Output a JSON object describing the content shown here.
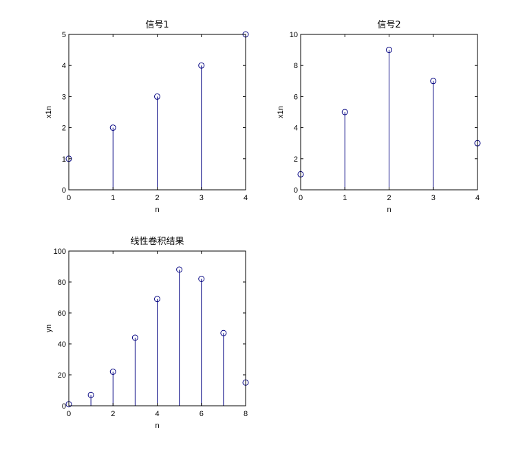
{
  "chart_data": [
    {
      "type": "stem",
      "title": "信号1",
      "xlabel": "n",
      "ylabel": "x1n",
      "xlim": [
        0,
        4
      ],
      "ylim": [
        0,
        5
      ],
      "xticks": [
        0,
        1,
        2,
        3,
        4
      ],
      "yticks": [
        0,
        1,
        2,
        3,
        4,
        5
      ],
      "x": [
        0,
        1,
        2,
        3,
        4
      ],
      "values": [
        1,
        2,
        3,
        4,
        5
      ],
      "color": "#000080"
    },
    {
      "type": "stem",
      "title": "信号2",
      "xlabel": "n",
      "ylabel": "x1n",
      "xlim": [
        0,
        4
      ],
      "ylim": [
        0,
        10
      ],
      "xticks": [
        0,
        1,
        2,
        3,
        4
      ],
      "yticks": [
        0,
        2,
        4,
        6,
        8,
        10
      ],
      "x": [
        0,
        1,
        2,
        3,
        4
      ],
      "values": [
        1,
        5,
        9,
        7,
        3
      ],
      "color": "#000080"
    },
    {
      "type": "stem",
      "title": "线性卷积结果",
      "xlabel": "n",
      "ylabel": "yn",
      "xlim": [
        0,
        8
      ],
      "ylim": [
        0,
        100
      ],
      "xticks": [
        0,
        2,
        4,
        6,
        8
      ],
      "yticks": [
        0,
        20,
        40,
        60,
        80,
        100
      ],
      "x": [
        0,
        1,
        2,
        3,
        4,
        5,
        6,
        7,
        8
      ],
      "values": [
        1,
        7,
        22,
        44,
        69,
        88,
        82,
        47,
        15
      ],
      "color": "#000080"
    }
  ]
}
